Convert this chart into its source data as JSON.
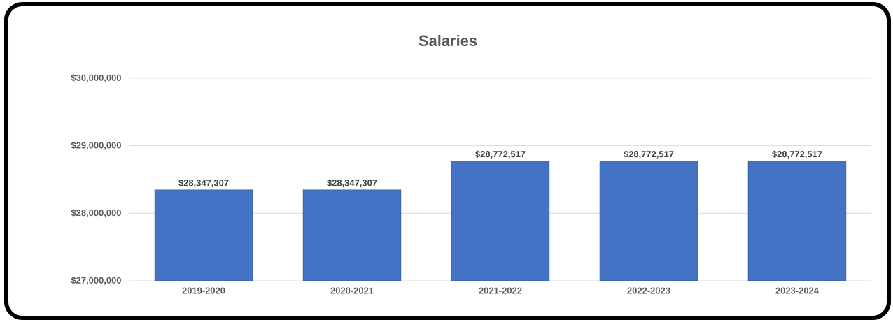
{
  "chart_data": {
    "type": "bar",
    "title": "Salaries",
    "categories": [
      "2019-2020",
      "2020-2021",
      "2021-2022",
      "2022-2023",
      "2023-2024"
    ],
    "values": [
      28347307,
      28347307,
      28772517,
      28772517,
      28772517
    ],
    "value_labels": [
      "$28,347,307",
      "$28,347,307",
      "$28,772,517",
      "$28,772,517",
      "$28,772,517"
    ],
    "color": "#4472c4",
    "ylim": [
      27000000,
      30000000
    ],
    "yticks": [
      {
        "value": 27000000,
        "label": "$27,000,000"
      },
      {
        "value": 28000000,
        "label": "$28,000,000"
      },
      {
        "value": 29000000,
        "label": "$29,000,000"
      },
      {
        "value": 30000000,
        "label": "$30,000,000"
      }
    ],
    "grid": "y"
  }
}
